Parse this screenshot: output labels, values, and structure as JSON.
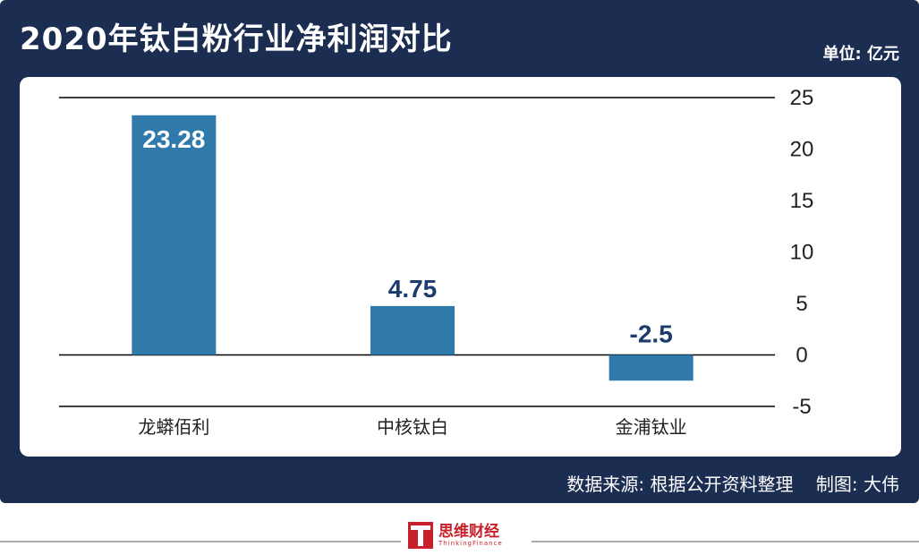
{
  "header": {
    "title": "2020年钛白粉行业净利润对比",
    "unit": "单位: 亿元"
  },
  "footer": {
    "source": "数据来源: 根据公开资料整理    制图: 大伟",
    "brand_name": "思维财经",
    "brand_en": "ThinkingFinance"
  },
  "colors": {
    "frame": "#1c2d52",
    "bar": "#2f7aab",
    "value_label_positive": "#ffffff",
    "value_label_dark": "#1c3b6e",
    "brand": "#c8202a"
  },
  "chart_data": {
    "type": "bar",
    "categories": [
      "龙蟒佰利",
      "中核钛白",
      "金浦钛业"
    ],
    "values": [
      23.28,
      4.75,
      -2.5
    ],
    "value_labels": [
      "23.28",
      "4.75",
      "-2.5"
    ],
    "ylim": [
      -5,
      25
    ],
    "yticks": [
      -5,
      0,
      5,
      10,
      15,
      20,
      25
    ],
    "ytick_labels": [
      "-5",
      "0",
      "5",
      "10",
      "15",
      "20",
      "25"
    ],
    "title": "2020年钛白粉行业净利润对比",
    "xlabel": "",
    "ylabel": "",
    "y_axis_position": "right",
    "gridlines": [
      -5,
      0,
      25
    ]
  }
}
